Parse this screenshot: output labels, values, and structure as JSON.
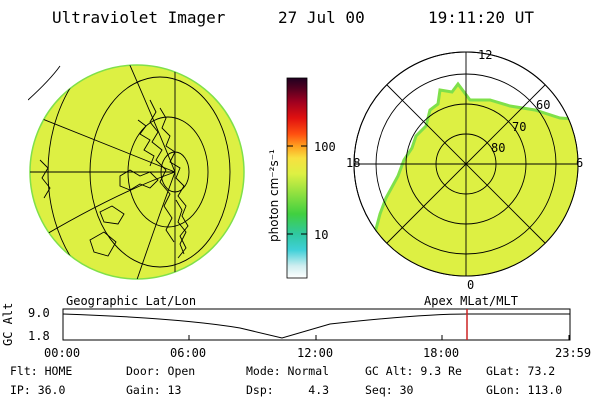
{
  "header": {
    "title": "Ultraviolet Imager",
    "date": "27 Jul 00",
    "time": "19:11:20 UT"
  },
  "colorbar": {
    "unit_label": "photon cm⁻²s⁻¹",
    "tick_100": "100",
    "tick_10": "10"
  },
  "polar_plot": {
    "mlt_labels": {
      "top": "12",
      "left": "18",
      "right": "6",
      "bottom": "0"
    },
    "lat_labels": [
      "60",
      "70",
      "80"
    ]
  },
  "timeline": {
    "left_title": "Geographic Lat/Lon",
    "right_title": "Apex MLat/MLT",
    "axis_label": "GC Alt",
    "y_top": "9.0",
    "y_bottom": "1.8",
    "time_ticks": [
      "00:00",
      "06:00",
      "12:00",
      "18:00",
      "23:59"
    ]
  },
  "status": {
    "row1": {
      "flt": "Flt: HOME",
      "door": "Door: Open",
      "mode": "Mode: Normal",
      "gc_alt": "GC Alt: 9.3 Re",
      "glat": "GLat: 73.2"
    },
    "row2": {
      "ip": "IP: 36.0",
      "gain": "Gain: 13",
      "dsp": "Dsp:     4.3",
      "seq": "Seq: 30",
      "glon": "GLon: 113.0"
    }
  },
  "colors": {
    "aurora_fill": "#ddf043",
    "aurora_edge": "#7fe04a",
    "current_time_marker": "#cc2222"
  }
}
